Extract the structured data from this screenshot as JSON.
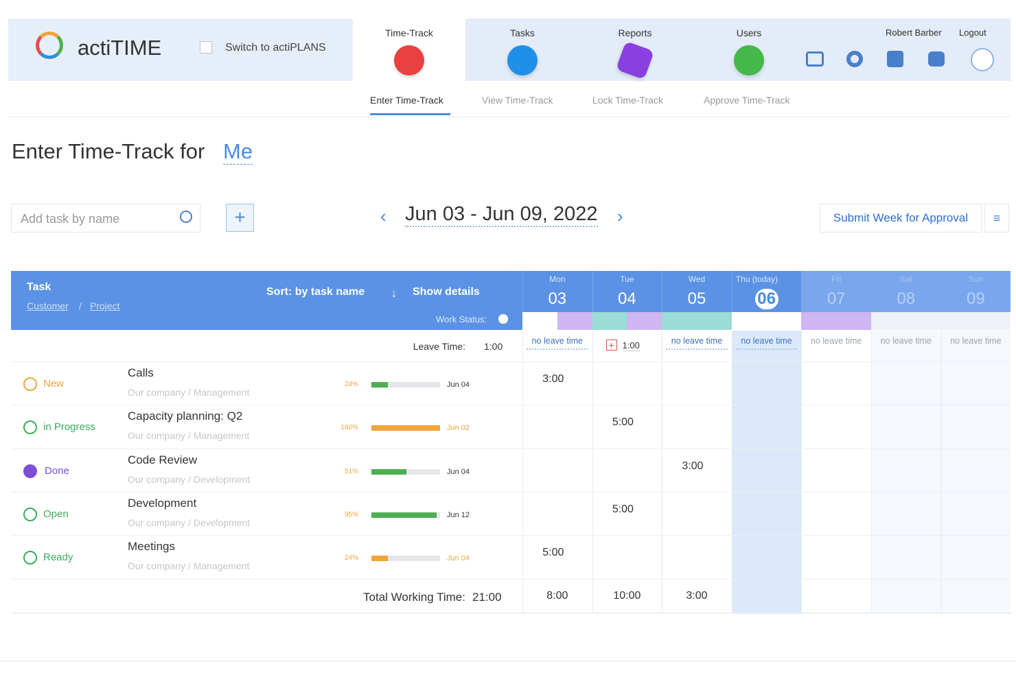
{
  "header": {
    "logo": "actiTIME",
    "switch": "Switch to actiPLANS",
    "nav": [
      "Time-Track",
      "Tasks",
      "Reports",
      "Users"
    ],
    "user": "Robert Barber",
    "logout": "Logout"
  },
  "subnav": [
    "Enter Time-Track",
    "View Time-Track",
    "Lock Time-Track",
    "Approve Time-Track"
  ],
  "page": {
    "title": "Enter Time-Track for",
    "for": "Me"
  },
  "toolbar": {
    "search_placeholder": "Add task by name",
    "add": "+",
    "range": "Jun 03 - Jun 09, 2022",
    "submit": "Submit Week for Approval"
  },
  "table": {
    "task_header": "Task",
    "customer": "Customer",
    "separator": "/",
    "project": "Project",
    "sort": "Sort: by task name",
    "show_details": "Show details",
    "work_status": "Work Status:",
    "days": [
      {
        "dow": "Mon",
        "day": "03"
      },
      {
        "dow": "Tue",
        "day": "04"
      },
      {
        "dow": "Wed",
        "day": "05"
      },
      {
        "dow": "Thu (today)",
        "day": "06"
      },
      {
        "dow": "Fri",
        "day": "07"
      },
      {
        "dow": "Sat",
        "day": "08"
      },
      {
        "dow": "Sun",
        "day": "09"
      }
    ],
    "leave_label": "Leave Time:",
    "leave_total": "1:00",
    "leave": [
      "no leave time",
      "1:00",
      "no leave time",
      "no leave time",
      "no leave time",
      "no leave time",
      "no leave time"
    ],
    "rows": [
      {
        "status": "New",
        "status_color": "#f0a43a",
        "task": "Calls",
        "path": "Our company / Management",
        "progress": {
          "value": 24,
          "label": "24%"
        },
        "bar_color": "#4caf50",
        "due": "Jun 04",
        "due_color": "#333333",
        "cells": [
          "3:00",
          null,
          null,
          null,
          null,
          null,
          null
        ]
      },
      {
        "status": "in Progress",
        "status_color": "#3aae5a",
        "task": "Capacity planning: Q2",
        "path": "Our company / Management",
        "progress": {
          "value": 160,
          "label": "160%"
        },
        "bar_color": "#f0a43a",
        "due": "Jun 02",
        "due_color": "#f0a43a",
        "cells": [
          null,
          "5:00",
          null,
          null,
          null,
          null,
          null
        ]
      },
      {
        "status": "Done",
        "status_color": "#7b4fd6",
        "task": "Code Review",
        "path": "Our company / Development",
        "progress": {
          "value": 51,
          "label": "51%"
        },
        "bar_color": "#4caf50",
        "due": "Jun 04",
        "due_color": "#333333",
        "cells": [
          null,
          null,
          "3:00",
          null,
          null,
          null,
          null
        ]
      },
      {
        "status": "Open",
        "status_color": "#3aae5a",
        "task": "Development",
        "path": "Our company / Development",
        "progress": {
          "value": 95,
          "label": "95%"
        },
        "bar_color": "#4caf50",
        "due": "Jun 12",
        "due_color": "#333333",
        "cells": [
          null,
          "5:00",
          null,
          null,
          null,
          null,
          null
        ]
      },
      {
        "status": "Ready",
        "status_color": "#3aae5a",
        "task": "Meetings",
        "path": "Our company / Management",
        "progress": {
          "value": 24,
          "label": "24%"
        },
        "bar_color": "#f0a43a",
        "due": "Jun 04",
        "due_color": "#f0a43a",
        "cells": [
          "5:00",
          null,
          null,
          null,
          null,
          null,
          null
        ]
      }
    ],
    "total_label": "Total Working Time:",
    "total": "21:00",
    "totals": [
      "8:00",
      "10:00",
      "3:00",
      null,
      null,
      null,
      null
    ]
  }
}
